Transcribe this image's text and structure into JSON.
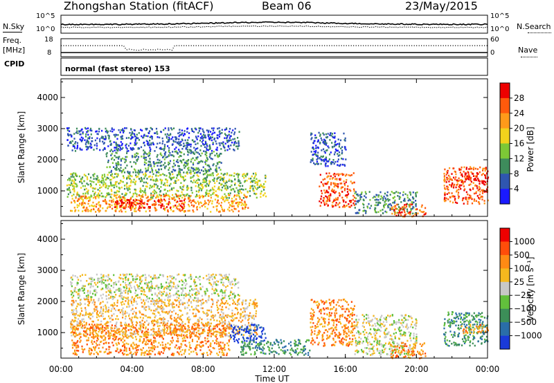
{
  "header": {
    "title": "Zhongshan Station (fitACF)",
    "beam": "Beam 06",
    "date": "23/May/2015"
  },
  "aux": {
    "nsky_label": "N.Sky",
    "nsky_tick_top": "10^5",
    "nsky_tick_bottom": "10^0",
    "nsearch_label": "N.Search",
    "nsearch_tick_top": "10^5",
    "nsearch_tick_bottom": "10^0",
    "freq_label": "Freq.",
    "freq_unit": "[MHz]",
    "freq_tick_top": "18",
    "freq_tick_bottom": "8",
    "nave_label": "Nave",
    "nave_tick_top": "60",
    "nave_tick_bottom": "0",
    "cpid_label": "CPID",
    "cpid_text": "normal (fast stereo) 153"
  },
  "axes": {
    "ylabel": "Slant Range [km]",
    "xlabel": "Time UT",
    "yticks": [
      "1000",
      "2000",
      "3000",
      "4000"
    ],
    "xticks": [
      "00:00",
      "04:00",
      "08:00",
      "12:00",
      "16:00",
      "20:00",
      "00:00"
    ]
  },
  "chart_data": [
    {
      "type": "heatmap",
      "name": "power",
      "x_range_hours": [
        0,
        24
      ],
      "y_range_km": [
        180,
        4600
      ],
      "colorbar_label": "Power [dB]",
      "colorbar_ticks": [
        "4",
        "8",
        "12",
        "16",
        "20",
        "24",
        "28"
      ],
      "colorbar_colors": [
        "#1a1aff",
        "#2f56b0",
        "#3e8c5c",
        "#7dc836",
        "#f2d21c",
        "#ff9a1a",
        "#ff5a0c",
        "#ee0000"
      ],
      "regions": [
        {
          "t0": 0.3,
          "t1": 10.0,
          "r0": 2300,
          "r1": 3050,
          "level": 1
        },
        {
          "t0": 2.5,
          "t1": 9.0,
          "r0": 1600,
          "r1": 2300,
          "level": 2
        },
        {
          "t0": 0.3,
          "t1": 11.5,
          "r0": 800,
          "r1": 1600,
          "level": 3
        },
        {
          "t0": 0.5,
          "t1": 10.5,
          "r0": 350,
          "r1": 900,
          "level": 5
        },
        {
          "t0": 3.0,
          "t1": 7.0,
          "r0": 450,
          "r1": 750,
          "level": 7
        },
        {
          "t0": 14.0,
          "t1": 16.0,
          "r0": 1800,
          "r1": 2900,
          "level": 1
        },
        {
          "t0": 14.5,
          "t1": 16.5,
          "r0": 500,
          "r1": 1600,
          "level": 6
        },
        {
          "t0": 16.5,
          "t1": 20.0,
          "r0": 300,
          "r1": 1000,
          "level": 2
        },
        {
          "t0": 18.5,
          "t1": 20.5,
          "r0": 200,
          "r1": 600,
          "level": 6
        },
        {
          "t0": 21.5,
          "t1": 24.0,
          "r0": 600,
          "r1": 1800,
          "level": 6
        },
        {
          "t0": 22.5,
          "t1": 24.0,
          "r0": 1300,
          "r1": 1600,
          "level": 7
        }
      ]
    },
    {
      "type": "heatmap",
      "name": "velocity",
      "x_range_hours": [
        0,
        24
      ],
      "y_range_km": [
        180,
        4600
      ],
      "colorbar_label": "Velocity [m s⁻¹]",
      "colorbar_ticks": [
        "1000",
        "500",
        "100",
        "25",
        "−25",
        "−100",
        "−500",
        "−1000"
      ],
      "colorbar_colors": [
        "#1a3ad8",
        "#2a6ea8",
        "#3c8e58",
        "#62c03c",
        "#c8c8c8",
        "#f5b81e",
        "#ff8a14",
        "#ff4d0a",
        "#ee0000"
      ],
      "regions": [
        {
          "t0": 0.5,
          "t1": 10.0,
          "r0": 2100,
          "r1": 2900,
          "level": 4
        },
        {
          "t0": 0.5,
          "t1": 11.0,
          "r0": 900,
          "r1": 2100,
          "level": 5
        },
        {
          "t0": 0.5,
          "t1": 9.5,
          "r0": 300,
          "r1": 1300,
          "level": 6
        },
        {
          "t0": 9.5,
          "t1": 11.5,
          "r0": 700,
          "r1": 1300,
          "level": 0
        },
        {
          "t0": 10.0,
          "t1": 14.0,
          "r0": 300,
          "r1": 800,
          "level": 2
        },
        {
          "t0": 14.0,
          "t1": 16.5,
          "r0": 600,
          "r1": 2100,
          "level": 6
        },
        {
          "t0": 16.5,
          "t1": 20.0,
          "r0": 300,
          "r1": 1600,
          "level": 4
        },
        {
          "t0": 18.5,
          "t1": 20.5,
          "r0": 200,
          "r1": 700,
          "level": 6
        },
        {
          "t0": 21.5,
          "t1": 24.0,
          "r0": 600,
          "r1": 1700,
          "level": 2
        },
        {
          "t0": 22.5,
          "t1": 24.0,
          "r0": 1000,
          "r1": 1300,
          "level": 6
        }
      ]
    }
  ]
}
